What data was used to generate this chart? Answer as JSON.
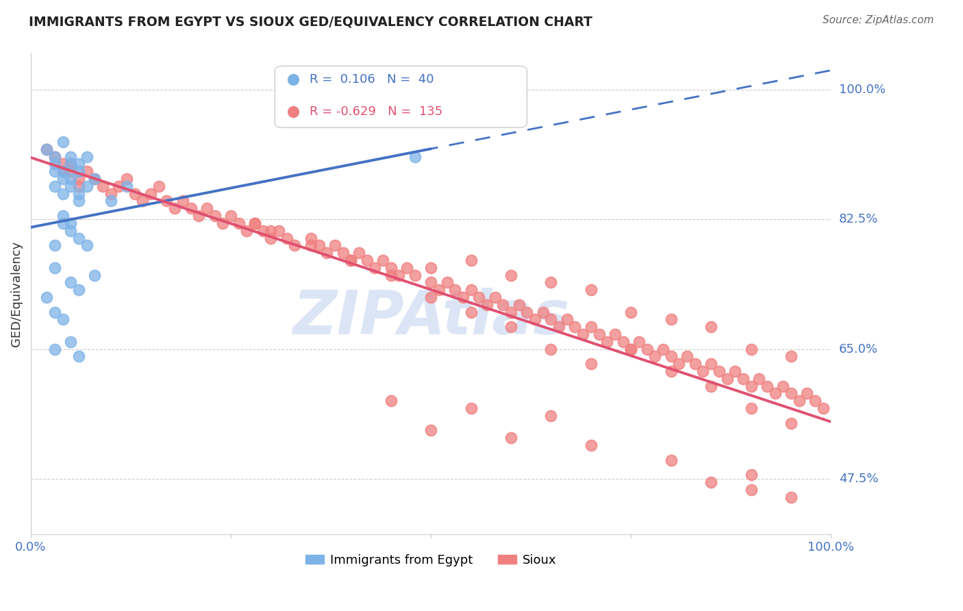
{
  "title": "IMMIGRANTS FROM EGYPT VS SIOUX GED/EQUIVALENCY CORRELATION CHART",
  "source": "Source: ZipAtlas.com",
  "ylabel": "GED/Equivalency",
  "xlim": [
    0.0,
    1.0
  ],
  "ylim": [
    0.4,
    1.05
  ],
  "ytick_vals": [
    0.475,
    0.65,
    0.825,
    1.0
  ],
  "ytick_labels": [
    "47.5%",
    "65.0%",
    "82.5%",
    "100.0%"
  ],
  "legend_r_egypt": "0.106",
  "legend_n_egypt": "40",
  "legend_r_sioux": "-0.629",
  "legend_n_sioux": "135",
  "blue_color": "#7EB3E8",
  "pink_color": "#F08080",
  "trend_blue": "#4472C4",
  "trend_pink": "#E05070",
  "watermark": "ZIPAtlas",
  "watermark_color": "#C8D8F0",
  "egypt_x": [
    0.02,
    0.03,
    0.04,
    0.03,
    0.04,
    0.05,
    0.05,
    0.06,
    0.04,
    0.03,
    0.03,
    0.04,
    0.06,
    0.07,
    0.05,
    0.05,
    0.06,
    0.08,
    0.07,
    0.06,
    0.04,
    0.1,
    0.12,
    0.05,
    0.03,
    0.04,
    0.05,
    0.06,
    0.07,
    0.03,
    0.02,
    0.05,
    0.06,
    0.08,
    0.03,
    0.04,
    0.03,
    0.05,
    0.06,
    0.48
  ],
  "egypt_y": [
    0.92,
    0.91,
    0.93,
    0.9,
    0.89,
    0.91,
    0.9,
    0.9,
    0.88,
    0.89,
    0.87,
    0.86,
    0.89,
    0.91,
    0.88,
    0.87,
    0.85,
    0.88,
    0.87,
    0.86,
    0.83,
    0.85,
    0.87,
    0.82,
    0.79,
    0.82,
    0.81,
    0.8,
    0.79,
    0.76,
    0.72,
    0.74,
    0.73,
    0.75,
    0.7,
    0.69,
    0.65,
    0.66,
    0.64,
    0.91
  ],
  "sioux_x": [
    0.02,
    0.03,
    0.04,
    0.04,
    0.05,
    0.05,
    0.06,
    0.06,
    0.07,
    0.08,
    0.09,
    0.1,
    0.11,
    0.12,
    0.13,
    0.14,
    0.15,
    0.16,
    0.17,
    0.18,
    0.19,
    0.2,
    0.21,
    0.22,
    0.23,
    0.24,
    0.25,
    0.26,
    0.27,
    0.28,
    0.29,
    0.3,
    0.31,
    0.32,
    0.33,
    0.35,
    0.36,
    0.37,
    0.38,
    0.39,
    0.4,
    0.41,
    0.42,
    0.43,
    0.44,
    0.45,
    0.46,
    0.47,
    0.48,
    0.5,
    0.51,
    0.52,
    0.53,
    0.54,
    0.55,
    0.56,
    0.57,
    0.58,
    0.59,
    0.6,
    0.61,
    0.62,
    0.63,
    0.64,
    0.65,
    0.66,
    0.67,
    0.68,
    0.69,
    0.7,
    0.71,
    0.72,
    0.73,
    0.74,
    0.75,
    0.76,
    0.77,
    0.78,
    0.79,
    0.8,
    0.81,
    0.82,
    0.83,
    0.84,
    0.85,
    0.86,
    0.87,
    0.88,
    0.89,
    0.9,
    0.91,
    0.92,
    0.93,
    0.94,
    0.95,
    0.96,
    0.97,
    0.98,
    0.99,
    0.5,
    0.55,
    0.6,
    0.65,
    0.7,
    0.75,
    0.8,
    0.85,
    0.9,
    0.95,
    0.28,
    0.3,
    0.35,
    0.4,
    0.45,
    0.5,
    0.55,
    0.6,
    0.65,
    0.7,
    0.75,
    0.8,
    0.85,
    0.9,
    0.95,
    0.85,
    0.9,
    0.95,
    0.5,
    0.6,
    0.7,
    0.8,
    0.9,
    0.45,
    0.55,
    0.65
  ],
  "sioux_y": [
    0.92,
    0.91,
    0.9,
    0.89,
    0.9,
    0.89,
    0.88,
    0.87,
    0.89,
    0.88,
    0.87,
    0.86,
    0.87,
    0.88,
    0.86,
    0.85,
    0.86,
    0.87,
    0.85,
    0.84,
    0.85,
    0.84,
    0.83,
    0.84,
    0.83,
    0.82,
    0.83,
    0.82,
    0.81,
    0.82,
    0.81,
    0.8,
    0.81,
    0.8,
    0.79,
    0.8,
    0.79,
    0.78,
    0.79,
    0.78,
    0.77,
    0.78,
    0.77,
    0.76,
    0.77,
    0.76,
    0.75,
    0.76,
    0.75,
    0.74,
    0.73,
    0.74,
    0.73,
    0.72,
    0.73,
    0.72,
    0.71,
    0.72,
    0.71,
    0.7,
    0.71,
    0.7,
    0.69,
    0.7,
    0.69,
    0.68,
    0.69,
    0.68,
    0.67,
    0.68,
    0.67,
    0.66,
    0.67,
    0.66,
    0.65,
    0.66,
    0.65,
    0.64,
    0.65,
    0.64,
    0.63,
    0.64,
    0.63,
    0.62,
    0.63,
    0.62,
    0.61,
    0.62,
    0.61,
    0.6,
    0.61,
    0.6,
    0.59,
    0.6,
    0.59,
    0.58,
    0.59,
    0.58,
    0.57,
    0.76,
    0.77,
    0.75,
    0.74,
    0.73,
    0.7,
    0.69,
    0.68,
    0.65,
    0.64,
    0.82,
    0.81,
    0.79,
    0.77,
    0.75,
    0.72,
    0.7,
    0.68,
    0.65,
    0.63,
    0.65,
    0.62,
    0.6,
    0.57,
    0.55,
    0.47,
    0.46,
    0.45,
    0.54,
    0.53,
    0.52,
    0.5,
    0.48,
    0.58,
    0.57,
    0.56
  ]
}
